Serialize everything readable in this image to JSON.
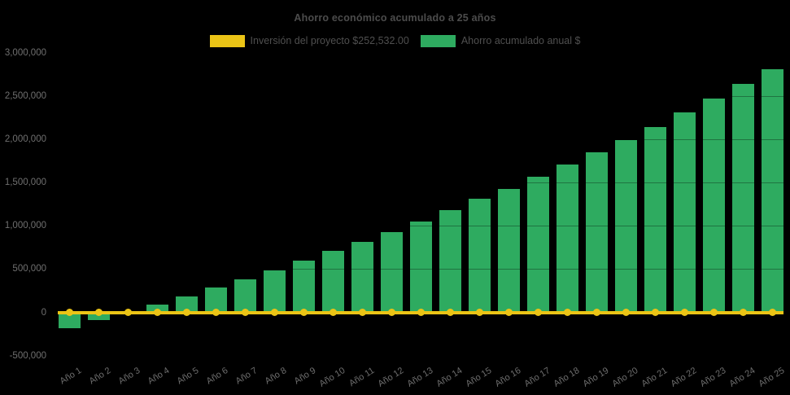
{
  "chart_data": {
    "type": "bar",
    "title": "Ahorro económico acumulado a 25 años",
    "categories": [
      "Año 1",
      "Año 2",
      "Año 3",
      "Año 4",
      "Año 5",
      "Año 6",
      "Año 7",
      "Año 8",
      "Año 9",
      "Año 10",
      "Año 11",
      "Año 12",
      "Año 13",
      "Año 14",
      "Año 15",
      "Año 16",
      "Año 17",
      "Año 18",
      "Año 19",
      "Año 20",
      "Año 21",
      "Año 22",
      "Año 23",
      "Año 24",
      "Año 25"
    ],
    "series": [
      {
        "name": "Inversión del proyecto $252,532.00",
        "type": "line",
        "color": "#EBC416",
        "values": [
          0,
          0,
          0,
          0,
          0,
          0,
          0,
          0,
          0,
          0,
          0,
          0,
          0,
          0,
          0,
          0,
          0,
          0,
          0,
          0,
          0,
          0,
          0,
          0,
          0
        ]
      },
      {
        "name": "Ahorro acumulado anual $",
        "type": "bar",
        "color": "#2EAB60",
        "values": [
          -180000,
          -90000,
          10000,
          90000,
          180000,
          290000,
          385000,
          485000,
          600000,
          710000,
          815000,
          930000,
          1055000,
          1180000,
          1310000,
          1425000,
          1570000,
          1705000,
          1850000,
          1995000,
          2145000,
          2310000,
          2475000,
          2640000,
          2810000
        ]
      }
    ],
    "y_axis": {
      "min": -500000,
      "max": 3000000,
      "tick_step": 500000,
      "tick_labels": [
        "3,000,000",
        "2,500,000",
        "2,000,000",
        "1,500,000",
        "1,000,000",
        "500,000",
        "0",
        "-500,000"
      ]
    },
    "x_axis": {
      "label_rotation_deg": -32
    },
    "legend_position": "top",
    "background": "#000000",
    "grid": "subtle dark gridlines at each 500,000"
  }
}
